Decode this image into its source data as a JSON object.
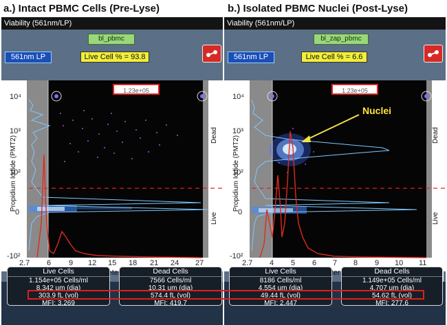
{
  "panels": [
    {
      "heading": "a.)  Intact PBMC Cells (Pre-Lyse)",
      "window_title": "Viability (561nm/LP)",
      "gate_name": "bl_pbmc",
      "laser_label": "561nm LP",
      "live_percent_label": "Live Cell % = 93.8",
      "threshold_label": "1.23e+05",
      "y_axis_title": "Propidium Iodide (PMT2)",
      "x_axis_title": "Diameter (um)",
      "side_labels": {
        "top": "Dead",
        "bottom": "Live"
      },
      "y_ticks": [
        "10⁴",
        "10³",
        "10²",
        "0",
        "-10²"
      ],
      "x_ticks": [
        "2.7",
        "6",
        "9",
        "12",
        "15",
        "18",
        "21",
        "24",
        "27"
      ],
      "live_card": {
        "title": "Live Cells",
        "count": "1.154e+05 Cells/ml",
        "diameter": "8.342 um (dia)",
        "volume": "303.9 fL (vol)",
        "mfi": "MFI: 3.269"
      },
      "dead_card": {
        "title": "Dead Cells",
        "count": "7566 Cells/ml",
        "diameter": "10.31 um (dia)",
        "volume": "574.4 fL (vol)",
        "mfi": "MFI: 419.7"
      }
    },
    {
      "heading": "b.)  Isolated PBMC Nuclei (Post-Lyse)",
      "window_title": "Viability (561nm/LP)",
      "gate_name": "bl_zap_pbmc",
      "laser_label": "561nm LP",
      "live_percent_label": "Live Cell % = 6.6",
      "threshold_label": "1.23e+05",
      "y_axis_title": "Propidium Iodide (PMT2)",
      "x_axis_title": "Diameter (um)",
      "side_labels": {
        "top": "Dead",
        "bottom": "Live"
      },
      "annotation": "Nuclei",
      "y_ticks": [
        "10⁴",
        "10³",
        "10²",
        "0",
        "-10²"
      ],
      "x_ticks": [
        "2.7",
        "4",
        "5",
        "6",
        "7",
        "8",
        "9",
        "10",
        "11"
      ],
      "live_card": {
        "title": "Live Cells",
        "count": "8186 Cells/ml",
        "diameter": "4.554 um (dia)",
        "volume": "49.44 fL (vol)",
        "mfi": "MFI: 2.447"
      },
      "dead_card": {
        "title": "Dead Cells",
        "count": "1.149e+05 Cells/ml",
        "diameter": "4.707 um (dia)",
        "volume": "54.62 fL (vol)",
        "mfi": "MFI: 277.6"
      }
    }
  ],
  "colors": {
    "gate_red": "#e02020",
    "hist_red": "#e02a20",
    "hist_blue": "#7fc8ff",
    "arrow_yellow": "#f3e24a",
    "annotation_yellow": "#ffe43a"
  }
}
